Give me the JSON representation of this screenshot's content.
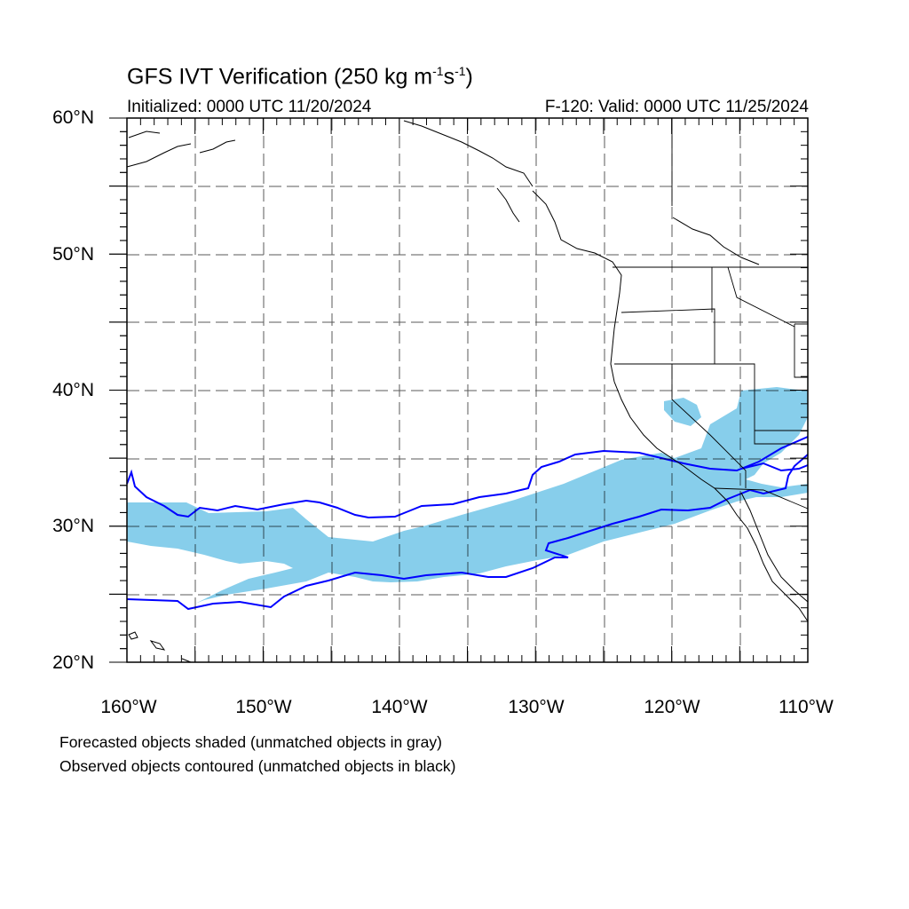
{
  "title": {
    "main": "GFS IVT Verification (250 kg m",
    "sup1": "-1",
    "mid": "s",
    "sup2": "-1",
    "end": ")"
  },
  "subtitle": {
    "initialized": "Initialized: 0000 UTC 11/20/2024",
    "valid": "F-120: Valid: 0000 UTC 11/25/2024"
  },
  "lat_labels": [
    "60°N",
    "50°N",
    "40°N",
    "30°N",
    "20°N"
  ],
  "lon_labels": [
    "160°W",
    "150°W",
    "140°W",
    "130°W",
    "120°W",
    "110°W"
  ],
  "notes": {
    "line1": "Forecasted objects shaded (unmatched objects in gray)",
    "line2": "Observed objects contoured (unmatched objects in black)"
  },
  "colors": {
    "forecast_fill": "#87ceeb",
    "observed_contour": "#0000ff",
    "coast": "#000000",
    "grid": "#000000"
  }
}
